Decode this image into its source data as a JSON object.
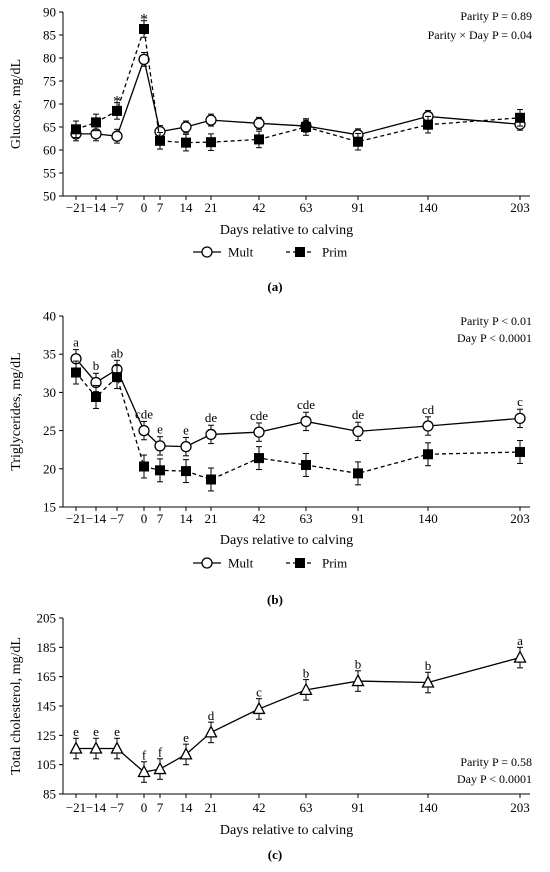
{
  "chart_data": [
    {
      "type": "line",
      "panel_label": "(a)",
      "x": [
        -21,
        -14,
        -7,
        0,
        7,
        14,
        21,
        42,
        63,
        91,
        140,
        203
      ],
      "x_tick_labels": [
        "−21",
        "−14",
        "−7",
        "0",
        "7",
        "14",
        "21",
        "42",
        "63",
        "91",
        "140",
        "203"
      ],
      "xlabel": "Days relative to calving",
      "ylabel": "Glucose, mg/dL",
      "ylim": [
        50,
        90
      ],
      "y_ticks": [
        50,
        55,
        60,
        65,
        70,
        75,
        80,
        85,
        90
      ],
      "series": [
        {
          "name": "Mult",
          "marker": "circle-open",
          "line": "solid",
          "values": [
            63.5,
            63.5,
            63.0,
            79.7,
            64.0,
            65.0,
            66.5,
            65.8,
            65.2,
            63.3,
            67.3,
            65.6
          ],
          "errors": [
            1.5,
            1.5,
            1.5,
            1.5,
            1.3,
            1.3,
            1.3,
            1.3,
            1.3,
            1.3,
            1.3,
            1.3
          ]
        },
        {
          "name": "Prim",
          "marker": "square-filled",
          "line": "dashed",
          "values": [
            64.5,
            66.0,
            68.5,
            86.3,
            62.0,
            61.6,
            61.7,
            62.3,
            65.0,
            61.8,
            65.5,
            67.0
          ],
          "errors": [
            1.8,
            1.8,
            1.8,
            1.8,
            1.8,
            1.8,
            1.8,
            1.8,
            1.8,
            1.8,
            1.8,
            1.8
          ]
        }
      ],
      "point_labels": [
        {
          "x": -7,
          "y": 71.2,
          "text": "*"
        },
        {
          "x": 0,
          "y": 89.0,
          "text": "*"
        }
      ],
      "annotations": [
        "Parity P = 0.89",
        "Parity × Day P = 0.04"
      ],
      "legend": {
        "position": "bottom",
        "entries": [
          "Mult",
          "Prim"
        ]
      },
      "grid": false
    },
    {
      "type": "line",
      "panel_label": "(b)",
      "x": [
        -21,
        -14,
        -7,
        0,
        7,
        14,
        21,
        42,
        63,
        91,
        140,
        203
      ],
      "x_tick_labels": [
        "−21",
        "−14",
        "−7",
        "0",
        "7",
        "14",
        "21",
        "42",
        "63",
        "91",
        "140",
        "203"
      ],
      "xlabel": "Days relative to calving",
      "ylabel": "Triglycerides, mg/dL",
      "ylim": [
        15,
        40
      ],
      "y_ticks": [
        15,
        20,
        25,
        30,
        35,
        40
      ],
      "series": [
        {
          "name": "Mult",
          "marker": "circle-open",
          "line": "solid",
          "values": [
            34.4,
            31.3,
            33.0,
            25.0,
            23.0,
            22.9,
            24.5,
            24.8,
            26.2,
            24.9,
            25.6,
            26.6
          ],
          "errors": [
            1.2,
            1.2,
            1.2,
            1.2,
            1.2,
            1.2,
            1.2,
            1.2,
            1.2,
            1.2,
            1.2,
            1.2
          ]
        },
        {
          "name": "Prim",
          "marker": "square-filled",
          "line": "dashed",
          "values": [
            32.6,
            29.4,
            32.0,
            20.3,
            19.8,
            19.7,
            18.6,
            21.4,
            20.5,
            19.4,
            21.9,
            22.2
          ],
          "errors": [
            1.5,
            1.5,
            1.5,
            1.5,
            1.5,
            1.5,
            1.5,
            1.5,
            1.5,
            1.5,
            1.5,
            1.5
          ]
        }
      ],
      "point_labels": [
        {
          "x": -21,
          "y": 36.0,
          "text": "a"
        },
        {
          "x": -14,
          "y": 32.9,
          "text": "b"
        },
        {
          "x": -7,
          "y": 34.6,
          "text": "ab"
        },
        {
          "x": 0,
          "y": 26.6,
          "text": "cde"
        },
        {
          "x": 7,
          "y": 24.6,
          "text": "e"
        },
        {
          "x": 14,
          "y": 24.5,
          "text": "e"
        },
        {
          "x": 21,
          "y": 26.1,
          "text": "de"
        },
        {
          "x": 42,
          "y": 26.4,
          "text": "cde"
        },
        {
          "x": 63,
          "y": 27.8,
          "text": "cde"
        },
        {
          "x": 91,
          "y": 26.5,
          "text": "de"
        },
        {
          "x": 140,
          "y": 27.2,
          "text": "cd"
        },
        {
          "x": 203,
          "y": 28.2,
          "text": "c"
        }
      ],
      "annotations": [
        "Parity P < 0.01",
        "Day P < 0.0001"
      ],
      "legend": {
        "position": "bottom",
        "entries": [
          "Mult",
          "Prim"
        ]
      },
      "grid": false
    },
    {
      "type": "line",
      "panel_label": "(c)",
      "x": [
        -21,
        -14,
        -7,
        0,
        7,
        14,
        21,
        42,
        63,
        91,
        140,
        203
      ],
      "x_tick_labels": [
        "−21",
        "−14",
        "−7",
        "0",
        "7",
        "14",
        "21",
        "42",
        "63",
        "91",
        "140",
        "203"
      ],
      "xlabel": "Days relative to calving",
      "ylabel": "Total cholesterol, mg/dL",
      "ylim": [
        85,
        205
      ],
      "y_ticks": [
        85,
        105,
        125,
        145,
        165,
        185,
        205
      ],
      "series": [
        {
          "name": "",
          "marker": "triangle-open",
          "line": "solid",
          "values": [
            116,
            116,
            116,
            100,
            102,
            112,
            127,
            143,
            156,
            162,
            161,
            178
          ],
          "errors": [
            7,
            7,
            7,
            7,
            7,
            7,
            7,
            7,
            7,
            7,
            7,
            7
          ]
        }
      ],
      "point_labels": [
        {
          "x": -21,
          "y": 124.5,
          "text": "e"
        },
        {
          "x": -14,
          "y": 124.5,
          "text": "e"
        },
        {
          "x": -7,
          "y": 124.5,
          "text": "e"
        },
        {
          "x": 0,
          "y": 108.5,
          "text": "f"
        },
        {
          "x": 7,
          "y": 110.5,
          "text": "f"
        },
        {
          "x": 14,
          "y": 120.5,
          "text": "e"
        },
        {
          "x": 21,
          "y": 135.5,
          "text": "d"
        },
        {
          "x": 42,
          "y": 151.5,
          "text": "c"
        },
        {
          "x": 63,
          "y": 164.5,
          "text": "b"
        },
        {
          "x": 91,
          "y": 170.5,
          "text": "b"
        },
        {
          "x": 140,
          "y": 169.5,
          "text": "b"
        },
        {
          "x": 203,
          "y": 186.5,
          "text": "a"
        }
      ],
      "annotations": [
        "Parity P = 0.58",
        "Day P < 0.0001"
      ],
      "grid": false
    }
  ]
}
